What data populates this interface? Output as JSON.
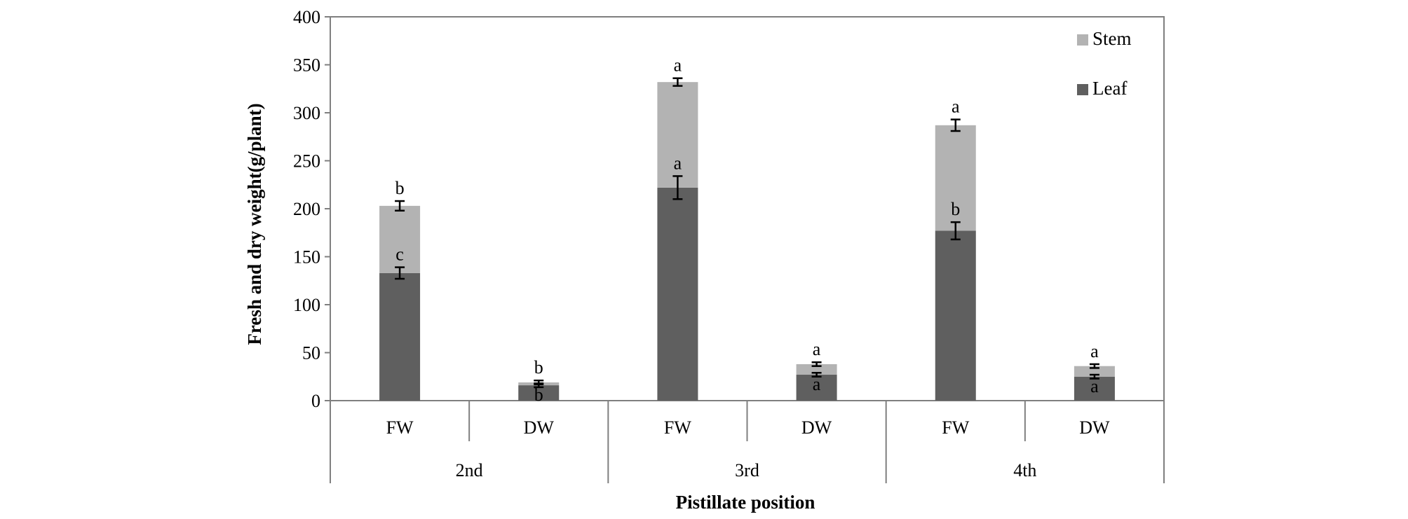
{
  "chart_data": {
    "type": "bar",
    "stacked": true,
    "xlabel": "Pistillate position",
    "ylabel": "Fresh and dry weight(g/plant)",
    "ylim": [
      0,
      400
    ],
    "yticks": [
      0,
      50,
      100,
      150,
      200,
      250,
      300,
      350,
      400
    ],
    "groups": [
      "2nd",
      "3rd",
      "4th"
    ],
    "categories": [
      "FW",
      "DW",
      "FW",
      "DW",
      "FW",
      "DW"
    ],
    "category_group": [
      0,
      0,
      1,
      1,
      2,
      2
    ],
    "legend_position": "top-right",
    "grid": false,
    "series": [
      {
        "name": "Leaf",
        "color": "#5f5f5f",
        "values": [
          133,
          16,
          222,
          27,
          177,
          25
        ],
        "errors": [
          6,
          2,
          12,
          2,
          9,
          2
        ],
        "sig": [
          "c",
          "b",
          "a",
          "a",
          "b",
          "a"
        ]
      },
      {
        "name": "Stem",
        "color": "#b3b3b3",
        "values": [
          70,
          3,
          110,
          11,
          110,
          11
        ],
        "errors": [
          5,
          2,
          4,
          2,
          6,
          2
        ],
        "sig": [
          "b",
          "b",
          "a",
          "a",
          "a",
          "a"
        ]
      }
    ]
  }
}
